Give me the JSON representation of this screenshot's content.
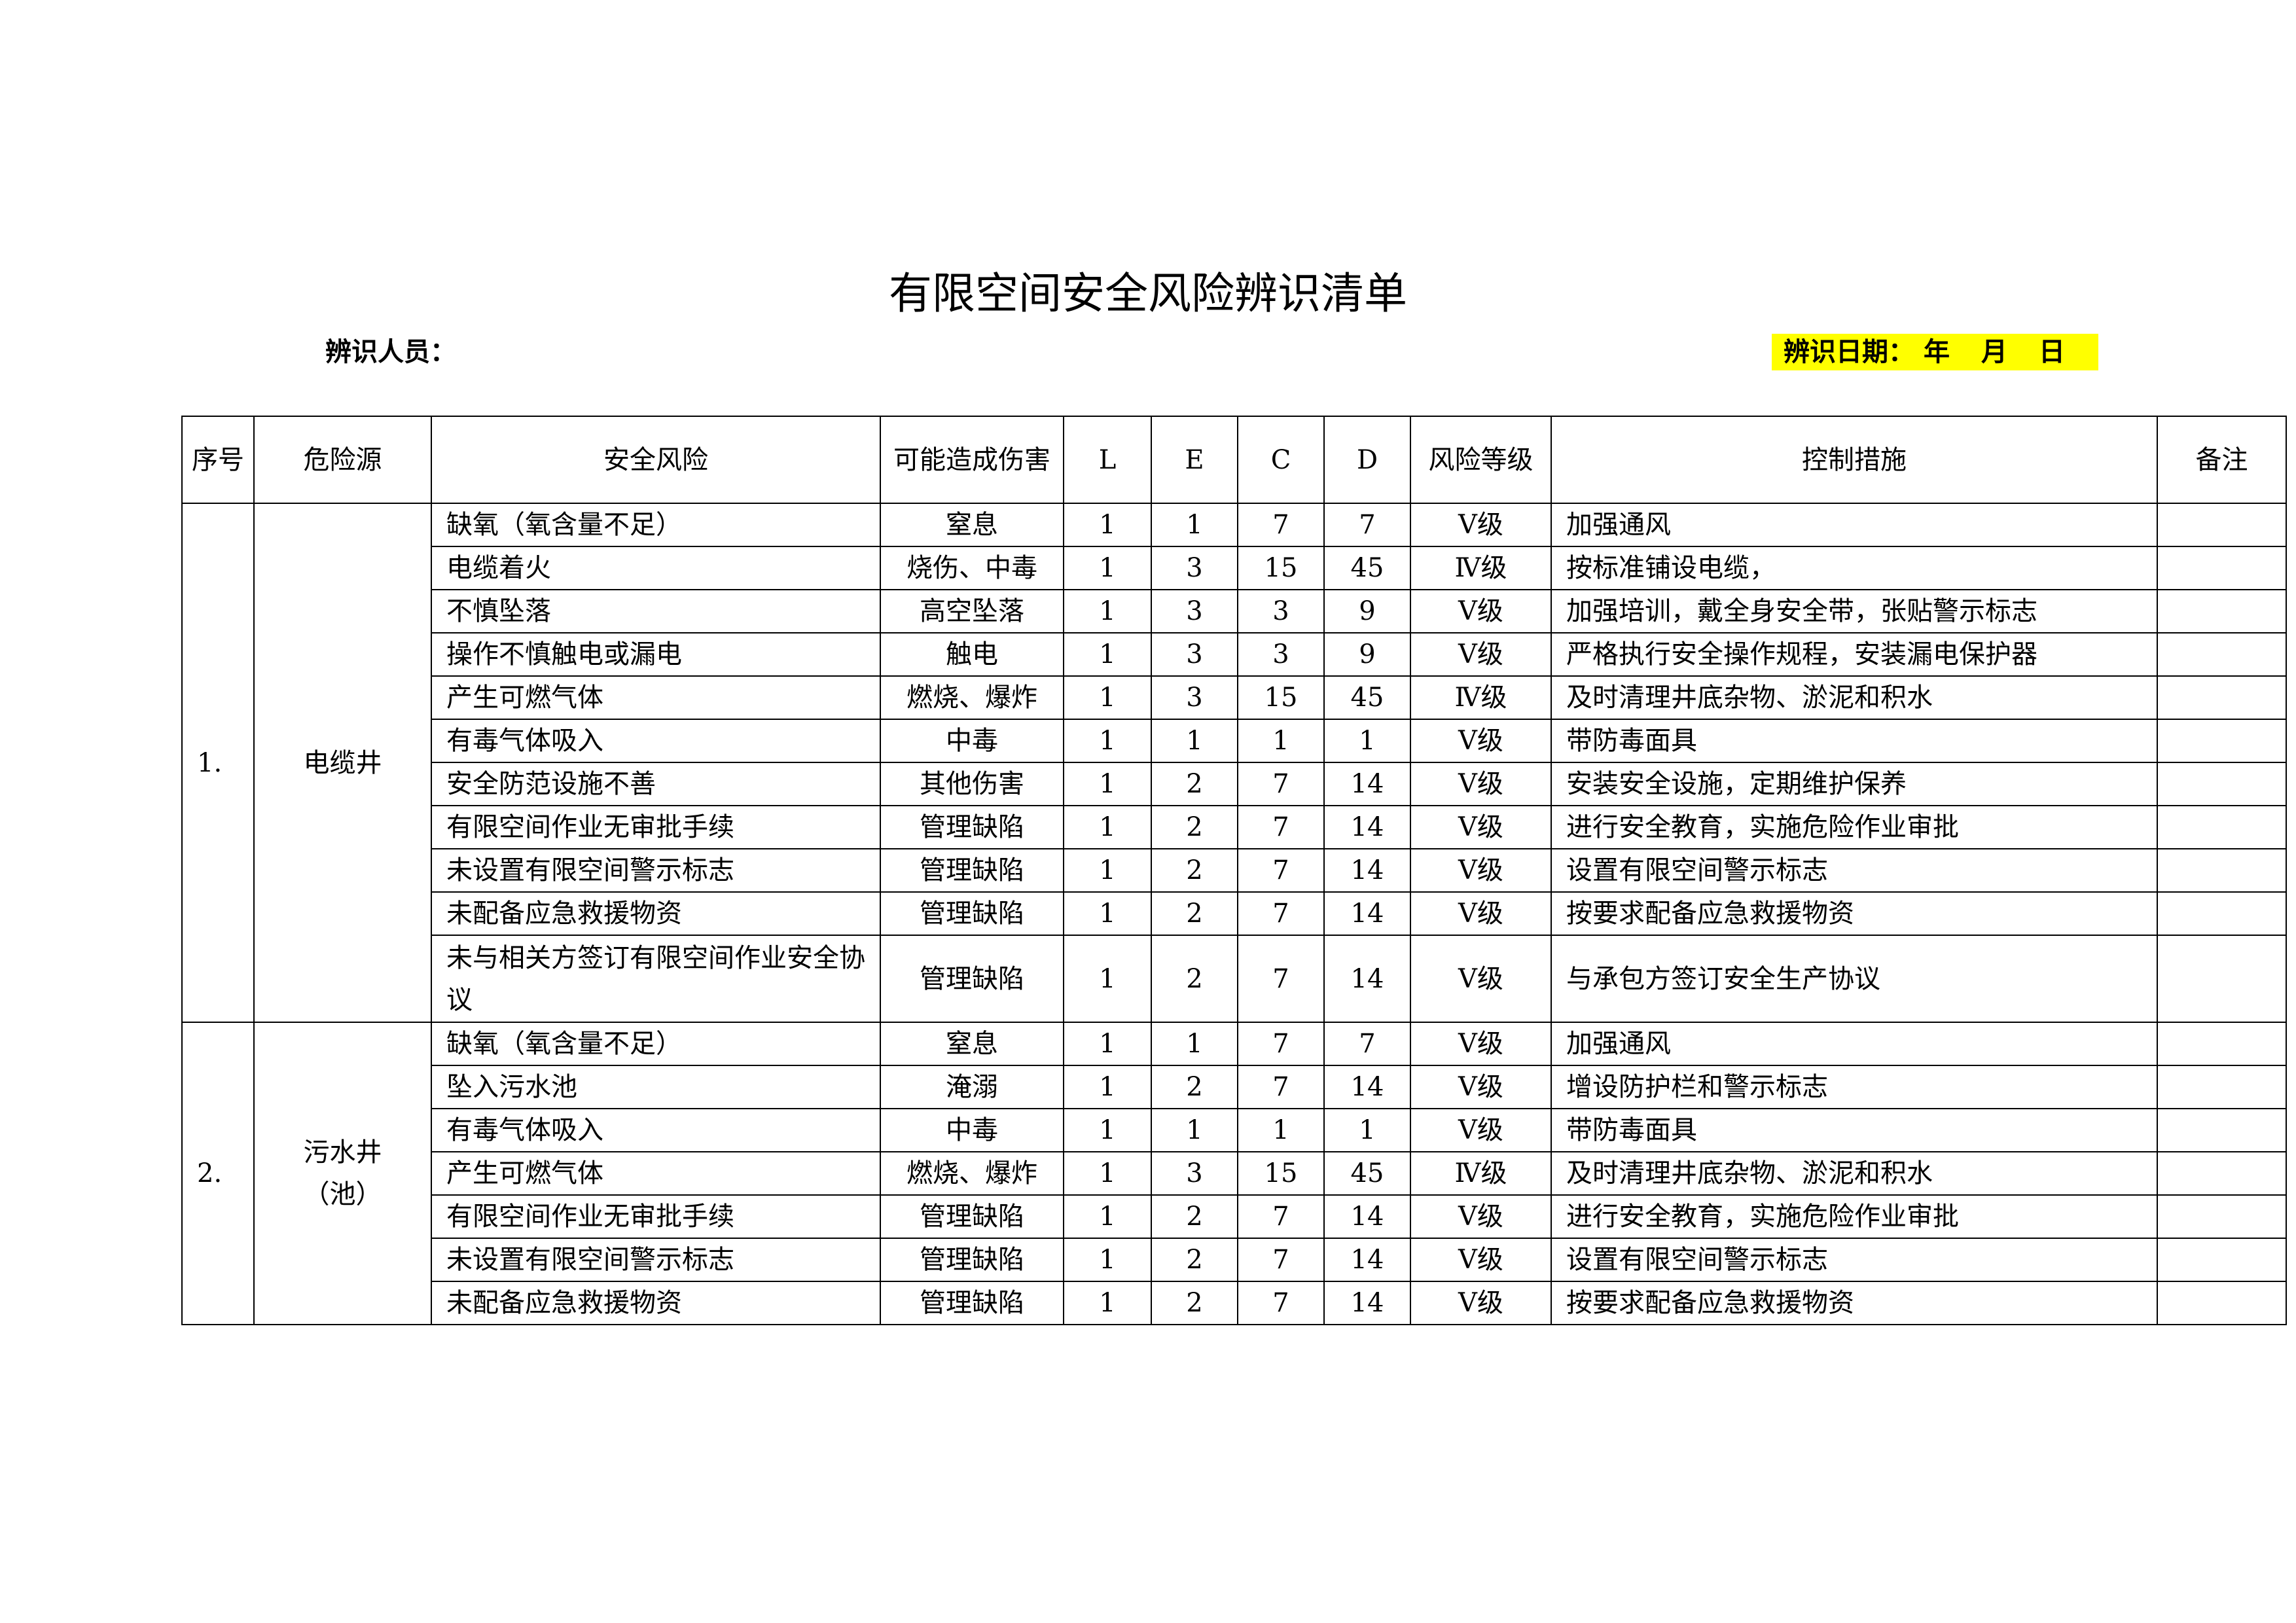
{
  "title": "有限空间安全风险辨识清单",
  "identifier_label": "辨识人员：",
  "date": {
    "label": "辨识日期：",
    "year": "年",
    "month": "月",
    "day": "日",
    "highlight_color": "#ffff00"
  },
  "table": {
    "headers": [
      "序号",
      "危险源",
      "安全风险",
      "可能造成伤害",
      "L",
      "E",
      "C",
      "D",
      "风险等级",
      "控制措施",
      "备注"
    ],
    "groups": [
      {
        "seq": "1.",
        "source": "电缆井",
        "rows": [
          {
            "risk": "缺氧（氧含量不足）",
            "harm": "窒息",
            "L": "1",
            "E": "1",
            "C": "7",
            "D": "7",
            "level": "Ⅴ级",
            "control": "加强通风",
            "remark": ""
          },
          {
            "risk": "电缆着火",
            "harm": "烧伤、中毒",
            "L": "1",
            "E": "3",
            "C": "15",
            "D": "45",
            "level": "Ⅳ级",
            "control": "按标准铺设电缆，",
            "remark": ""
          },
          {
            "risk": "不慎坠落",
            "harm": "高空坠落",
            "L": "1",
            "E": "3",
            "C": "3",
            "D": "9",
            "level": "Ⅴ级",
            "control": "加强培训，戴全身安全带，张贴警示标志",
            "remark": ""
          },
          {
            "risk": "操作不慎触电或漏电",
            "harm": "触电",
            "L": "1",
            "E": "3",
            "C": "3",
            "D": "9",
            "level": "Ⅴ级",
            "control": "严格执行安全操作规程，安装漏电保护器",
            "remark": ""
          },
          {
            "risk": "产生可燃气体",
            "harm": "燃烧、爆炸",
            "L": "1",
            "E": "3",
            "C": "15",
            "D": "45",
            "level": "Ⅳ级",
            "control": "及时清理井底杂物、淤泥和积水",
            "remark": ""
          },
          {
            "risk": "有毒气体吸入",
            "harm": "中毒",
            "L": "1",
            "E": "1",
            "C": "1",
            "D": "1",
            "level": "Ⅴ级",
            "control": "带防毒面具",
            "remark": ""
          },
          {
            "risk": "安全防范设施不善",
            "harm": "其他伤害",
            "L": "1",
            "E": "2",
            "C": "7",
            "D": "14",
            "level": "Ⅴ级",
            "control": "安装安全设施，定期维护保养",
            "remark": ""
          },
          {
            "risk": "有限空间作业无审批手续",
            "harm": "管理缺陷",
            "L": "1",
            "E": "2",
            "C": "7",
            "D": "14",
            "level": "Ⅴ级",
            "control": "进行安全教育，实施危险作业审批",
            "remark": ""
          },
          {
            "risk": "未设置有限空间警示标志",
            "harm": "管理缺陷",
            "L": "1",
            "E": "2",
            "C": "7",
            "D": "14",
            "level": "Ⅴ级",
            "control": "设置有限空间警示标志",
            "remark": ""
          },
          {
            "risk": "未配备应急救援物资",
            "harm": "管理缺陷",
            "L": "1",
            "E": "2",
            "C": "7",
            "D": "14",
            "level": "Ⅴ级",
            "control": "按要求配备应急救援物资",
            "remark": ""
          },
          {
            "risk": "未与相关方签订有限空间作业安全协议",
            "harm": "管理缺陷",
            "L": "1",
            "E": "2",
            "C": "7",
            "D": "14",
            "level": "Ⅴ级",
            "control": "与承包方签订安全生产协议",
            "remark": ""
          }
        ]
      },
      {
        "seq": "2.",
        "source": "污水井（池）",
        "rows": [
          {
            "risk": "缺氧（氧含量不足）",
            "harm": "窒息",
            "L": "1",
            "E": "1",
            "C": "7",
            "D": "7",
            "level": "Ⅴ级",
            "control": "加强通风",
            "remark": ""
          },
          {
            "risk": "坠入污水池",
            "harm": "淹溺",
            "L": "1",
            "E": "2",
            "C": "7",
            "D": "14",
            "level": "Ⅴ级",
            "control": "增设防护栏和警示标志",
            "remark": ""
          },
          {
            "risk": "有毒气体吸入",
            "harm": "中毒",
            "L": "1",
            "E": "1",
            "C": "1",
            "D": "1",
            "level": "Ⅴ级",
            "control": "带防毒面具",
            "remark": ""
          },
          {
            "risk": "产生可燃气体",
            "harm": "燃烧、爆炸",
            "L": "1",
            "E": "3",
            "C": "15",
            "D": "45",
            "level": "Ⅳ级",
            "control": "及时清理井底杂物、淤泥和积水",
            "remark": ""
          },
          {
            "risk": "有限空间作业无审批手续",
            "harm": "管理缺陷",
            "L": "1",
            "E": "2",
            "C": "7",
            "D": "14",
            "level": "Ⅴ级",
            "control": "进行安全教育，实施危险作业审批",
            "remark": ""
          },
          {
            "risk": "未设置有限空间警示标志",
            "harm": "管理缺陷",
            "L": "1",
            "E": "2",
            "C": "7",
            "D": "14",
            "level": "Ⅴ级",
            "control": "设置有限空间警示标志",
            "remark": ""
          },
          {
            "risk": "未配备应急救援物资",
            "harm": "管理缺陷",
            "L": "1",
            "E": "2",
            "C": "7",
            "D": "14",
            "level": "Ⅴ级",
            "control": "按要求配备应急救援物资",
            "remark": ""
          }
        ]
      }
    ]
  }
}
